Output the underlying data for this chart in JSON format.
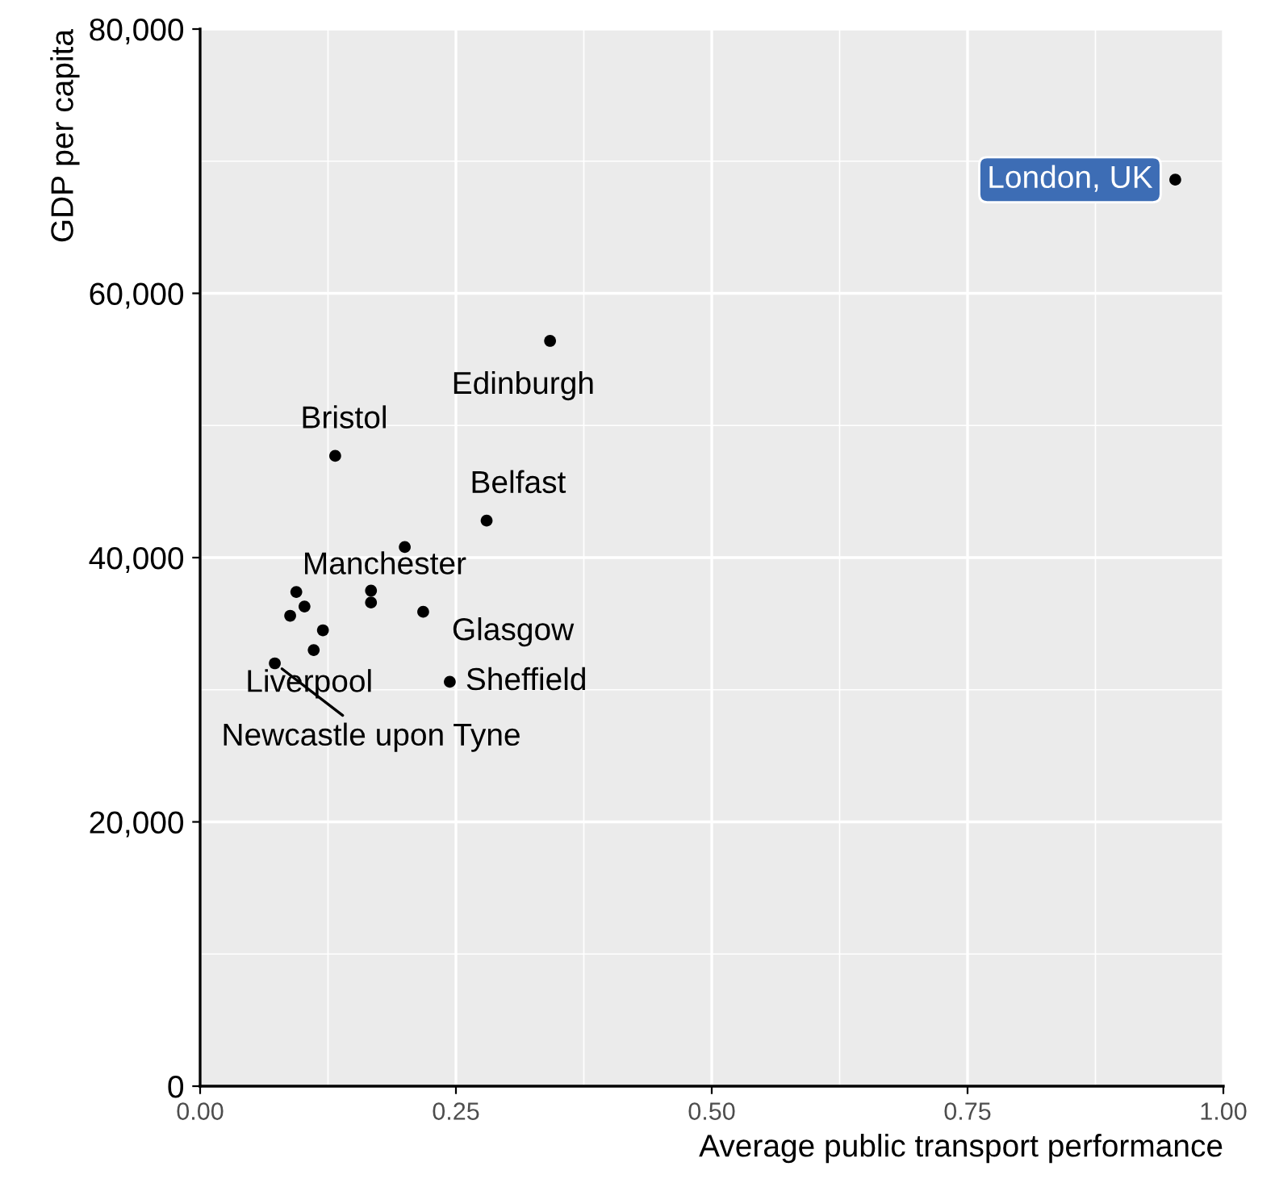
{
  "chart_data": {
    "type": "scatter",
    "xlabel": "Average public transport performance",
    "ylabel": "GDP per capita",
    "x": [
      0.953,
      0.342,
      0.132,
      0.28,
      0.2,
      0.094,
      0.167,
      0.167,
      0.102,
      0.088,
      0.218,
      0.12,
      0.111,
      0.073,
      0.244
    ],
    "values": [
      68600,
      56400,
      47700,
      42800,
      40800,
      37400,
      37500,
      36600,
      36300,
      35600,
      35900,
      34500,
      33000,
      32000,
      30600
    ],
    "color": "#000000",
    "marker": "circle",
    "xlim": [
      0,
      1
    ],
    "xticks": [
      {
        "value": 0,
        "label": "0.00"
      },
      {
        "value": 0.25,
        "label": "0.25"
      },
      {
        "value": 0.5,
        "label": "0.50"
      },
      {
        "value": 0.75,
        "label": "0.75"
      },
      {
        "value": 1,
        "label": "1.00"
      }
    ],
    "ylim": [
      0,
      80000
    ],
    "yticks": [
      {
        "value": 0,
        "label": "0"
      },
      {
        "value": 20000,
        "label": "20,000"
      },
      {
        "value": 40000,
        "label": "40,000"
      },
      {
        "value": 60000,
        "label": "60,000"
      },
      {
        "value": 80000,
        "label": "80,000"
      }
    ],
    "grid": true,
    "annotations": [
      {
        "text": "London, UK",
        "x": 0.953,
        "y": 68600
      },
      {
        "text": "Edinburgh",
        "x": 0.342,
        "y": 56400
      },
      {
        "text": "Bristol",
        "x": 0.132,
        "y": 47700
      },
      {
        "text": "Belfast",
        "x": 0.28,
        "y": 42800
      },
      {
        "text": "Manchester",
        "x": 0.167,
        "y": 37500
      },
      {
        "text": "Glasgow",
        "x": 0.218,
        "y": 35900
      },
      {
        "text": "Liverpool",
        "x": 0.111,
        "y": 33000
      },
      {
        "text": "Sheffield",
        "x": 0.244,
        "y": 30600
      },
      {
        "text": "Newcastle upon Tyne",
        "x": 0.073,
        "y": 32000
      }
    ]
  }
}
